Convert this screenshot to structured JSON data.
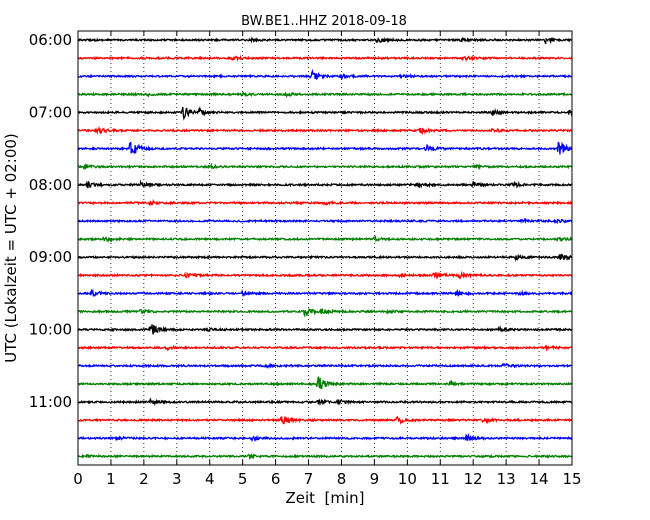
{
  "chart_data": {
    "type": "line",
    "title": "BW.BE1..HHZ 2018-09-18",
    "xlabel": "Zeit  [min]",
    "ylabel": "UTC (Lokalzeit = UTC + 02:00)",
    "xlim": [
      0,
      15
    ],
    "x_ticks": [
      "0",
      "1",
      "2",
      "3",
      "4",
      "5",
      "6",
      "7",
      "8",
      "9",
      "10",
      "11",
      "12",
      "13",
      "14",
      "15"
    ],
    "y_ticks": [
      "06:00",
      "07:00",
      "08:00",
      "09:00",
      "10:00",
      "11:00"
    ],
    "grid": "vertical dotted",
    "trace_interval_min": 15,
    "colors": [
      "#000000",
      "#ff0000",
      "#0000ff",
      "#008000"
    ],
    "traces": [
      {
        "start": "06:00",
        "color": "#000000",
        "events": [
          [
            5.3,
            0.15
          ],
          [
            9.1,
            0.3
          ],
          [
            11.6,
            0.2
          ],
          [
            14.2,
            0.35
          ]
        ]
      },
      {
        "start": "06:15",
        "color": "#ff0000",
        "events": [
          [
            4.7,
            0.2
          ],
          [
            11.7,
            0.25
          ]
        ]
      },
      {
        "start": "06:30",
        "color": "#0000ff",
        "events": [
          [
            7.1,
            0.55
          ],
          [
            8.0,
            0.2
          ],
          [
            9.8,
            0.15
          ]
        ]
      },
      {
        "start": "06:45",
        "color": "#008000",
        "events": [
          [
            2.1,
            0.15
          ],
          [
            5.0,
            0.15
          ],
          [
            6.3,
            0.2
          ]
        ]
      },
      {
        "start": "07:00",
        "color": "#000000",
        "events": [
          [
            3.2,
            0.75
          ],
          [
            3.7,
            0.3
          ],
          [
            12.6,
            0.3
          ],
          [
            14.9,
            0.2
          ]
        ]
      },
      {
        "start": "07:15",
        "color": "#ff0000",
        "events": [
          [
            0.6,
            0.35
          ],
          [
            10.4,
            0.3
          ],
          [
            12.6,
            0.2
          ]
        ]
      },
      {
        "start": "07:30",
        "color": "#0000ff",
        "events": [
          [
            1.6,
            1.0
          ],
          [
            10.6,
            0.35
          ],
          [
            14.6,
            0.95
          ]
        ]
      },
      {
        "start": "07:45",
        "color": "#008000",
        "events": [
          [
            0.2,
            0.2
          ],
          [
            4.0,
            0.15
          ],
          [
            12.0,
            0.2
          ]
        ]
      },
      {
        "start": "08:00",
        "color": "#000000",
        "events": [
          [
            0.3,
            0.3
          ],
          [
            1.9,
            0.25
          ],
          [
            10.3,
            0.35
          ],
          [
            12.0,
            0.3
          ],
          [
            13.2,
            0.3
          ]
        ]
      },
      {
        "start": "08:15",
        "color": "#ff0000",
        "events": [
          [
            2.2,
            0.2
          ],
          [
            7.5,
            0.15
          ]
        ]
      },
      {
        "start": "08:30",
        "color": "#0000ff",
        "events": [
          [
            13.5,
            0.15
          ],
          [
            14.5,
            0.25
          ]
        ]
      },
      {
        "start": "08:45",
        "color": "#008000",
        "events": [
          [
            0.8,
            0.2
          ],
          [
            9.0,
            0.2
          ],
          [
            14.6,
            0.15
          ]
        ]
      },
      {
        "start": "09:00",
        "color": "#000000",
        "events": [
          [
            13.3,
            0.25
          ],
          [
            14.6,
            0.4
          ]
        ]
      },
      {
        "start": "09:15",
        "color": "#ff0000",
        "events": [
          [
            3.3,
            0.2
          ],
          [
            9.8,
            0.2
          ],
          [
            10.8,
            0.45
          ],
          [
            11.6,
            0.25
          ]
        ]
      },
      {
        "start": "09:30",
        "color": "#0000ff",
        "events": [
          [
            0.4,
            0.35
          ],
          [
            5.0,
            0.2
          ],
          [
            11.5,
            0.45
          ],
          [
            13.4,
            0.15
          ]
        ]
      },
      {
        "start": "09:45",
        "color": "#008000",
        "events": [
          [
            1.9,
            0.2
          ],
          [
            6.9,
            0.55
          ],
          [
            7.4,
            0.3
          ],
          [
            9.4,
            0.15
          ]
        ]
      },
      {
        "start": "10:00",
        "color": "#000000",
        "events": [
          [
            2.2,
            0.7
          ],
          [
            3.9,
            0.2
          ],
          [
            12.8,
            0.2
          ]
        ]
      },
      {
        "start": "10:15",
        "color": "#ff0000",
        "events": [
          [
            2.7,
            0.15
          ],
          [
            14.2,
            0.2
          ]
        ]
      },
      {
        "start": "10:30",
        "color": "#0000ff",
        "events": [
          [
            5.7,
            0.2
          ],
          [
            12.9,
            0.2
          ]
        ]
      },
      {
        "start": "10:45",
        "color": "#008000",
        "events": [
          [
            7.3,
            0.85
          ],
          [
            11.3,
            0.15
          ]
        ]
      },
      {
        "start": "11:00",
        "color": "#000000",
        "events": [
          [
            2.2,
            0.25
          ],
          [
            7.3,
            0.2
          ],
          [
            7.9,
            0.2
          ]
        ]
      },
      {
        "start": "11:15",
        "color": "#ff0000",
        "events": [
          [
            6.2,
            0.55
          ],
          [
            9.7,
            0.4
          ],
          [
            12.3,
            0.2
          ]
        ]
      },
      {
        "start": "11:30",
        "color": "#0000ff",
        "events": [
          [
            1.2,
            0.15
          ],
          [
            5.3,
            0.2
          ],
          [
            11.8,
            0.35
          ]
        ]
      },
      {
        "start": "11:45",
        "color": "#008000",
        "events": [
          [
            0.3,
            0.15
          ],
          [
            5.2,
            0.15
          ]
        ]
      }
    ]
  }
}
